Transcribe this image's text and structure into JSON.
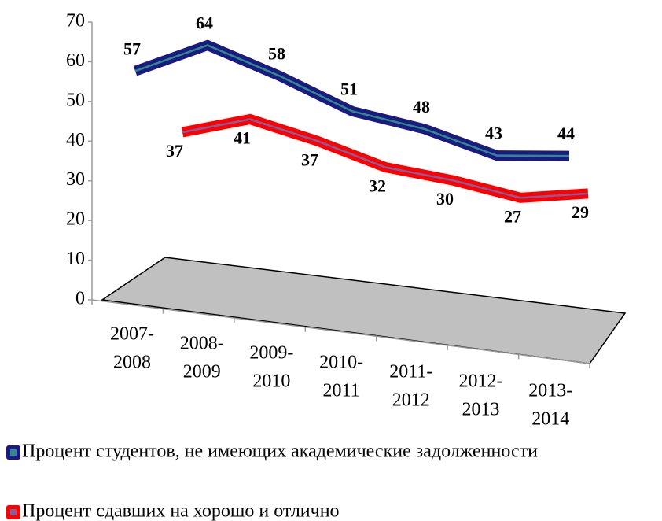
{
  "chart_data": {
    "type": "line3d",
    "categories": [
      [
        "2007-",
        "2008"
      ],
      [
        "2008-",
        "2009"
      ],
      [
        "2009-",
        "2010"
      ],
      [
        "2010-",
        "2011"
      ],
      [
        "2011-",
        "2012"
      ],
      [
        "2012-",
        "2013"
      ],
      [
        "2013-",
        "2014"
      ]
    ],
    "series": [
      {
        "name": "Процент студентов, не имеющих академические задолженности",
        "color": "#1a1a80",
        "inner_color": "#2e8b8b",
        "values": [
          57,
          64,
          58,
          51,
          48,
          43,
          44
        ]
      },
      {
        "name": "Процент сдавших на хорошо и отлично",
        "color": "#ff0000",
        "inner_color": "#8060a0",
        "values": [
          37,
          41,
          37,
          32,
          30,
          27,
          29
        ]
      }
    ],
    "ylim": [
      0,
      70
    ],
    "yticks": [
      0,
      10,
      20,
      30,
      40,
      50,
      60,
      70
    ]
  }
}
